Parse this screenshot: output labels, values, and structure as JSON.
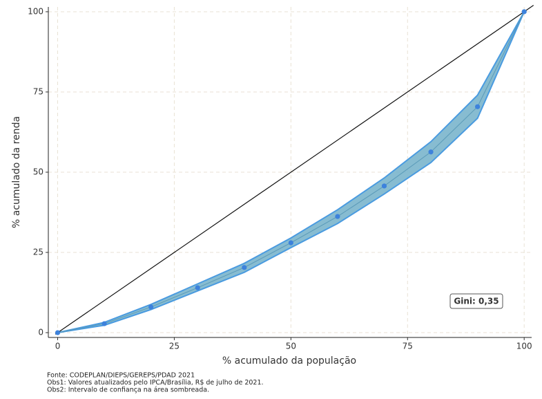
{
  "chart_data": {
    "type": "line",
    "x_label": "% acumulado da população",
    "y_label": "% acumulado da renda",
    "x": [
      0,
      10,
      20,
      30,
      40,
      50,
      60,
      70,
      80,
      90,
      100
    ],
    "series": [
      {
        "color": "#3d82dc",
        "values": [
          0,
          2.8,
          8,
          14,
          20.3,
          28,
          36.2,
          45.7,
          56.3,
          70.4,
          100
        ]
      }
    ],
    "band": {
      "color": "#7ab5cc",
      "edge_color": "#4a9be0",
      "lower": [
        0,
        2.3,
        7.2,
        13,
        18.8,
        26.5,
        34,
        43.2,
        53,
        66.8,
        100
      ],
      "upper": [
        0,
        3.2,
        8.8,
        15.2,
        21.6,
        29.5,
        38.3,
        48.2,
        59.5,
        74,
        100
      ]
    },
    "diagonal": {
      "color": "#111111",
      "x": [
        -0.5,
        102
      ],
      "values": [
        -0.5,
        102
      ]
    },
    "xlim": [
      -2,
      101.6
    ],
    "ylim": [
      -1.5,
      101.5
    ],
    "xticks": [
      0,
      25,
      50,
      75,
      100
    ],
    "yticks": [
      0,
      25,
      50,
      75,
      100
    ],
    "grid": true,
    "annotation": "Gini: 0,35",
    "notes": [
      "Fonte: CODEPLAN/DIEPS/GEREPS/PDAD 2021",
      "Obs1: Valores atualizados pelo IPCA/Brasília, R$ de julho de 2021.",
      "Obs2: Intervalo de confiança na área sombreada."
    ]
  }
}
